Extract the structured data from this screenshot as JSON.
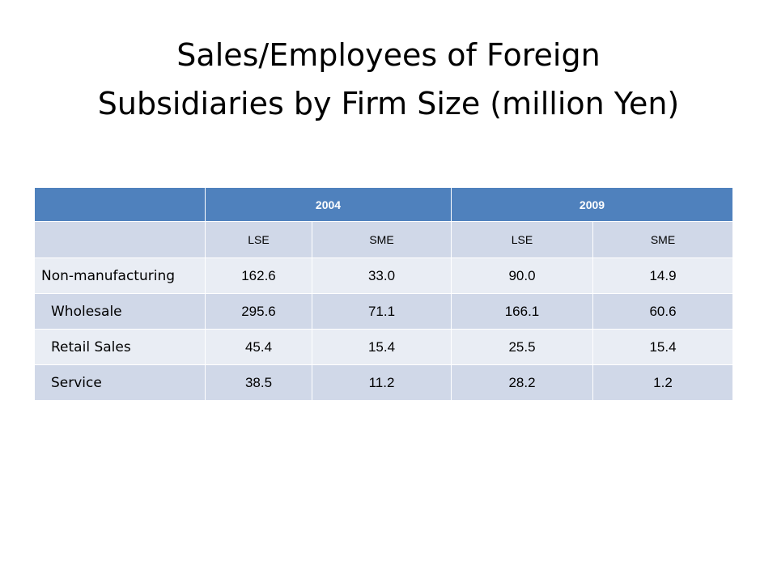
{
  "title": [
    "Sales/Employees of Foreign",
    "Subsidiaries by Firm Size (million Yen)"
  ],
  "table": {
    "years": [
      "2004",
      "2009"
    ],
    "subheader": [
      "LSE",
      "SME",
      "LSE",
      "SME"
    ],
    "rows": [
      {
        "label": "Non-manufacturing",
        "cells": [
          "162.6",
          "33.0",
          "90.0",
          "14.9"
        ]
      },
      {
        "label": "Wholesale",
        "cells": [
          "295.6",
          "71.1",
          "166.1",
          "60.6"
        ]
      },
      {
        "label": "Retail Sales",
        "cells": [
          "45.4",
          "15.4",
          "25.5",
          "15.4"
        ]
      },
      {
        "label": "Service",
        "cells": [
          "38.5",
          "11.2",
          "28.2",
          "1.2"
        ]
      }
    ]
  }
}
